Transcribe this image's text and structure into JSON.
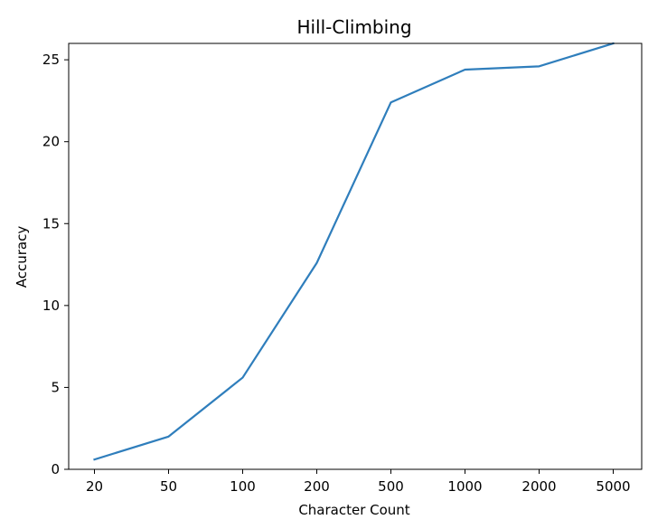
{
  "chart_data": {
    "type": "line",
    "title": "Hill-Climbing",
    "xlabel": "Character Count",
    "ylabel": "Accuracy",
    "categories": [
      "20",
      "50",
      "100",
      "200",
      "500",
      "1000",
      "2000",
      "5000"
    ],
    "series": [
      {
        "values": [
          0.6,
          2.0,
          5.6,
          12.6,
          22.4,
          24.4,
          24.6,
          26.0
        ],
        "color": "#2f7ebc"
      }
    ],
    "ylim": [
      0,
      26
    ],
    "yticks": [
      0,
      5,
      10,
      15,
      20,
      25
    ],
    "grid": false,
    "legend": "none"
  }
}
